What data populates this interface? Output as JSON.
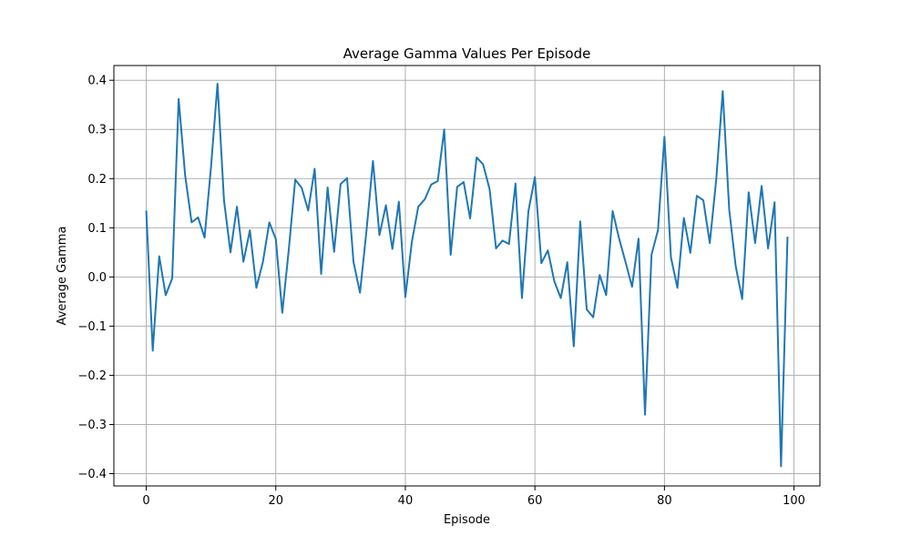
{
  "colors": {
    "series": "#1f77b4",
    "grid": "#b0b0b0",
    "axis": "#000000"
  },
  "chart_data": {
    "type": "line",
    "title": "Average Gamma Values Per Episode",
    "xlabel": "Episode",
    "ylabel": "Average Gamma",
    "xlim": [
      -5,
      104
    ],
    "ylim": [
      -0.425,
      0.43
    ],
    "grid": true,
    "x_ticks": [
      0,
      20,
      40,
      60,
      80,
      100
    ],
    "x_tick_labels": [
      "0",
      "20",
      "40",
      "60",
      "80",
      "100"
    ],
    "y_ticks": [
      -0.4,
      -0.3,
      -0.2,
      -0.1,
      0.0,
      0.1,
      0.2,
      0.3,
      0.4
    ],
    "y_tick_labels": [
      "−0.4",
      "−0.3",
      "−0.2",
      "−0.1",
      "0.0",
      "0.1",
      "0.2",
      "0.3",
      "0.4"
    ],
    "series": [
      {
        "x": [
          0,
          1,
          2,
          3,
          4,
          5,
          6,
          7,
          8,
          9,
          10,
          11,
          12,
          13,
          14,
          15,
          16,
          17,
          18,
          19,
          20,
          21,
          22,
          23,
          24,
          25,
          26,
          27,
          28,
          29,
          30,
          31,
          32,
          33,
          34,
          35,
          36,
          37,
          38,
          39,
          40,
          41,
          42,
          43,
          44,
          45,
          46,
          47,
          48,
          49,
          50,
          51,
          52,
          53,
          54,
          55,
          56,
          57,
          58,
          59,
          60,
          61,
          62,
          63,
          64,
          65,
          66,
          67,
          68,
          69,
          70,
          71,
          72,
          73,
          74,
          75,
          76,
          77,
          78,
          79,
          80,
          81,
          82,
          83,
          84,
          85,
          86,
          87,
          88,
          89,
          90,
          91,
          92,
          93,
          94,
          95,
          96,
          97,
          98,
          99
        ],
        "values": [
          0.135,
          -0.15,
          0.042,
          -0.037,
          -0.003,
          0.362,
          0.207,
          0.111,
          0.121,
          0.08,
          0.224,
          0.393,
          0.156,
          0.05,
          0.143,
          0.031,
          0.095,
          -0.022,
          0.03,
          0.111,
          0.077,
          -0.073,
          0.055,
          0.198,
          0.181,
          0.135,
          0.22,
          0.006,
          0.182,
          0.051,
          0.189,
          0.201,
          0.03,
          -0.032,
          0.094,
          0.236,
          0.085,
          0.146,
          0.057,
          0.153,
          -0.041,
          0.071,
          0.143,
          0.158,
          0.188,
          0.195,
          0.3,
          0.045,
          0.183,
          0.193,
          0.119,
          0.243,
          0.229,
          0.179,
          0.058,
          0.074,
          0.067,
          0.19,
          -0.043,
          0.134,
          0.203,
          0.028,
          0.054,
          -0.009,
          -0.043,
          0.03,
          -0.141,
          0.113,
          -0.066,
          -0.082,
          0.004,
          -0.037,
          0.134,
          0.078,
          0.03,
          -0.02,
          0.078,
          -0.28,
          0.045,
          0.095,
          0.285,
          0.04,
          -0.022,
          0.12,
          0.049,
          0.165,
          0.156,
          0.069,
          0.199,
          0.378,
          0.137,
          0.022,
          -0.045,
          0.172,
          0.069,
          0.185,
          0.058,
          0.152,
          -0.385,
          0.082
        ]
      }
    ]
  }
}
